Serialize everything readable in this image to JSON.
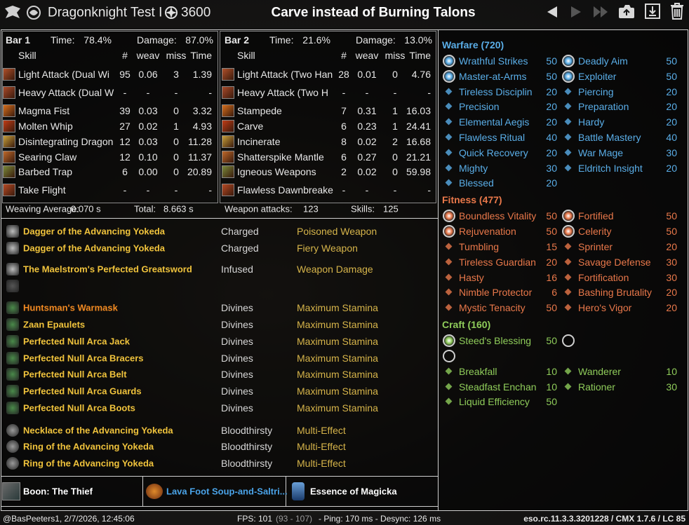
{
  "header": {
    "character": "Dragonknight Test I",
    "champion_points": "3600",
    "title": "Carve instead of Burning Talons"
  },
  "bars": [
    {
      "label": "Bar 1",
      "time_label": "Time:",
      "time": "78.4%",
      "damage_label": "Damage:",
      "damage": "87.0%",
      "columns": [
        "Skill",
        "#",
        "weav",
        "miss",
        "Time"
      ],
      "rows": [
        [
          "Light Attack (Dual Wi",
          "95",
          "0.06",
          "3",
          "1.39"
        ],
        [
          "Heavy Attack (Dual W",
          "-",
          "-",
          "-",
          "-"
        ],
        [
          "Magma Fist",
          "39",
          "0.03",
          "0",
          "3.32"
        ],
        [
          "Molten Whip",
          "27",
          "0.02",
          "1",
          "4.93"
        ],
        [
          "Disintegrating Dragon",
          "12",
          "0.03",
          "0",
          "11.28"
        ],
        [
          "Searing Claw",
          "12",
          "0.10",
          "0",
          "11.37"
        ],
        [
          "Barbed Trap",
          "6",
          "0.00",
          "0",
          "20.89"
        ],
        [
          "Take Flight",
          "-",
          "-",
          "-",
          "-"
        ]
      ]
    },
    {
      "label": "Bar 2",
      "time_label": "Time:",
      "time": "21.6%",
      "damage_label": "Damage:",
      "damage": "13.0%",
      "columns": [
        "Skill",
        "#",
        "weav",
        "miss",
        "Time"
      ],
      "rows": [
        [
          "Light Attack (Two Han",
          "28",
          "0.01",
          "0",
          "4.76"
        ],
        [
          "Heavy Attack (Two H",
          "-",
          "-",
          "-",
          "-"
        ],
        [
          "Stampede",
          "7",
          "0.31",
          "1",
          "16.03"
        ],
        [
          "Carve",
          "6",
          "0.23",
          "1",
          "24.41"
        ],
        [
          "Incinerate",
          "8",
          "0.02",
          "2",
          "16.68"
        ],
        [
          "Shatterspike Mantle",
          "6",
          "0.27",
          "0",
          "21.21"
        ],
        [
          "Igneous Weapons",
          "2",
          "0.02",
          "0",
          "59.98"
        ],
        [
          "Flawless Dawnbreake",
          "-",
          "-",
          "-",
          "-"
        ]
      ]
    }
  ],
  "summary": {
    "weaving_label": "Weaving Average:",
    "weaving": "0.070 s",
    "total_label": "Total:",
    "total": "8.663 s",
    "weapon_label": "Weapon attacks:",
    "weapon": "123",
    "skills_label": "Skills:",
    "skills": "125"
  },
  "gear": {
    "weapons": [
      {
        "name": "Dagger of the Advancing Yokeda",
        "trait": "Charged",
        "enchant": "Poisoned Weapon",
        "color": "#f0c33c"
      },
      {
        "name": "Dagger of the Advancing Yokeda",
        "trait": "Charged",
        "enchant": "Fiery Weapon",
        "color": "#f0c33c"
      },
      {
        "name": "The Maelstrom's Perfected Greatsword",
        "trait": "Infused",
        "enchant": "Weapon Damage",
        "color": "#f0c33c"
      }
    ],
    "armor": [
      {
        "name": "Huntsman's Warmask",
        "trait": "Divines",
        "enchant": "Maximum Stamina",
        "color": "#f28a22"
      },
      {
        "name": "Zaan Epaulets",
        "trait": "Divines",
        "enchant": "Maximum Stamina",
        "color": "#f0c33c"
      },
      {
        "name": "Perfected Null Arca Jack",
        "trait": "Divines",
        "enchant": "Maximum Stamina",
        "color": "#f0c33c"
      },
      {
        "name": "Perfected Null Arca Bracers",
        "trait": "Divines",
        "enchant": "Maximum Stamina",
        "color": "#f0c33c"
      },
      {
        "name": "Perfected Null Arca Belt",
        "trait": "Divines",
        "enchant": "Maximum Stamina",
        "color": "#f0c33c"
      },
      {
        "name": "Perfected Null Arca Guards",
        "trait": "Divines",
        "enchant": "Maximum Stamina",
        "color": "#f0c33c"
      },
      {
        "name": "Perfected Null Arca Boots",
        "trait": "Divines",
        "enchant": "Maximum Stamina",
        "color": "#f0c33c"
      }
    ],
    "jewelry": [
      {
        "name": "Necklace of the Advancing Yokeda",
        "trait": "Bloodthirsty",
        "enchant": "Multi-Effect",
        "color": "#f0c33c"
      },
      {
        "name": "Ring of the Advancing Yokeda",
        "trait": "Bloodthirsty",
        "enchant": "Multi-Effect",
        "color": "#f0c33c"
      },
      {
        "name": "Ring of the Advancing Yokeda",
        "trait": "Bloodthirsty",
        "enchant": "Multi-Effect",
        "color": "#f0c33c"
      }
    ]
  },
  "buffs": {
    "boon": "Boon: The Thief",
    "food": "Lava Foot Soup-and-Saltri...",
    "potion": "Essence of Magicka"
  },
  "champion": [
    {
      "title": "Warfare (720)",
      "color": "#5aaee8",
      "rows": [
        [
          {
            "name": "Wrathful Strikes",
            "points": 50,
            "slotted": true
          },
          {
            "name": "Deadly Aim",
            "points": 50,
            "slotted": true
          }
        ],
        [
          {
            "name": "Master-at-Arms",
            "points": 50,
            "slotted": true
          },
          {
            "name": "Exploiter",
            "points": 50,
            "slotted": true
          }
        ],
        [
          {
            "name": "Tireless Disciplin",
            "points": 20
          },
          {
            "name": "Piercing",
            "points": 20
          }
        ],
        [
          {
            "name": "Precision",
            "points": 20
          },
          {
            "name": "Preparation",
            "points": 20
          }
        ],
        [
          {
            "name": "Elemental Aegis",
            "points": 20
          },
          {
            "name": "Hardy",
            "points": 20
          }
        ],
        [
          {
            "name": "Flawless Ritual",
            "points": 40
          },
          {
            "name": "Battle Mastery",
            "points": 40
          }
        ],
        [
          {
            "name": "Quick Recovery",
            "points": 20
          },
          {
            "name": "War Mage",
            "points": 30
          }
        ],
        [
          {
            "name": "Mighty",
            "points": 30
          },
          {
            "name": "Eldritch Insight",
            "points": 20
          }
        ],
        [
          {
            "name": "Blessed",
            "points": 20
          }
        ]
      ]
    },
    {
      "title": "Fitness (477)",
      "color": "#e9784a",
      "rows": [
        [
          {
            "name": "Boundless Vitality",
            "points": 50,
            "slotted": true
          },
          {
            "name": "Fortified",
            "points": 50,
            "slotted": true
          }
        ],
        [
          {
            "name": "Rejuvenation",
            "points": 50,
            "slotted": true
          },
          {
            "name": "Celerity",
            "points": 50,
            "slotted": true
          }
        ],
        [
          {
            "name": "Tumbling",
            "points": 15
          },
          {
            "name": "Sprinter",
            "points": 20
          }
        ],
        [
          {
            "name": "Tireless Guardian",
            "points": 20
          },
          {
            "name": "Savage Defense",
            "points": 30
          }
        ],
        [
          {
            "name": "Hasty",
            "points": 16
          },
          {
            "name": "Fortification",
            "points": 30
          }
        ],
        [
          {
            "name": "Nimble Protector",
            "points": 6
          },
          {
            "name": "Bashing Brutality",
            "points": 20
          }
        ],
        [
          {
            "name": "Mystic Tenacity",
            "points": 50
          },
          {
            "name": "Hero's Vigor",
            "points": 20
          }
        ]
      ]
    },
    {
      "title": "Craft (160)",
      "color": "#8fcc5a",
      "rows": [
        [
          {
            "name": "Steed's Blessing",
            "points": 50,
            "slotted": true
          },
          {
            "slotted": true
          }
        ],
        [
          {
            "slotted": true
          }
        ],
        [
          {
            "name": "Breakfall",
            "points": 10
          },
          {
            "name": "Wanderer",
            "points": 10
          }
        ],
        [
          {
            "name": "Steadfast Enchan",
            "points": 10
          },
          {
            "name": "Rationer",
            "points": 30
          }
        ],
        [
          {
            "name": "Liquid Efficiency",
            "points": 50
          }
        ]
      ]
    }
  ],
  "footer": {
    "user": "@BasPeeters1, 2/7/2026, 12:45:06",
    "fps": "FPS: 101",
    "fps_range": "(93 - 107)",
    "network": "- Ping: 170 ms - Desync: 126 ms",
    "version": "eso.rc.11.3.3.3201228 / CMX 1.7.6 / LC 85"
  }
}
